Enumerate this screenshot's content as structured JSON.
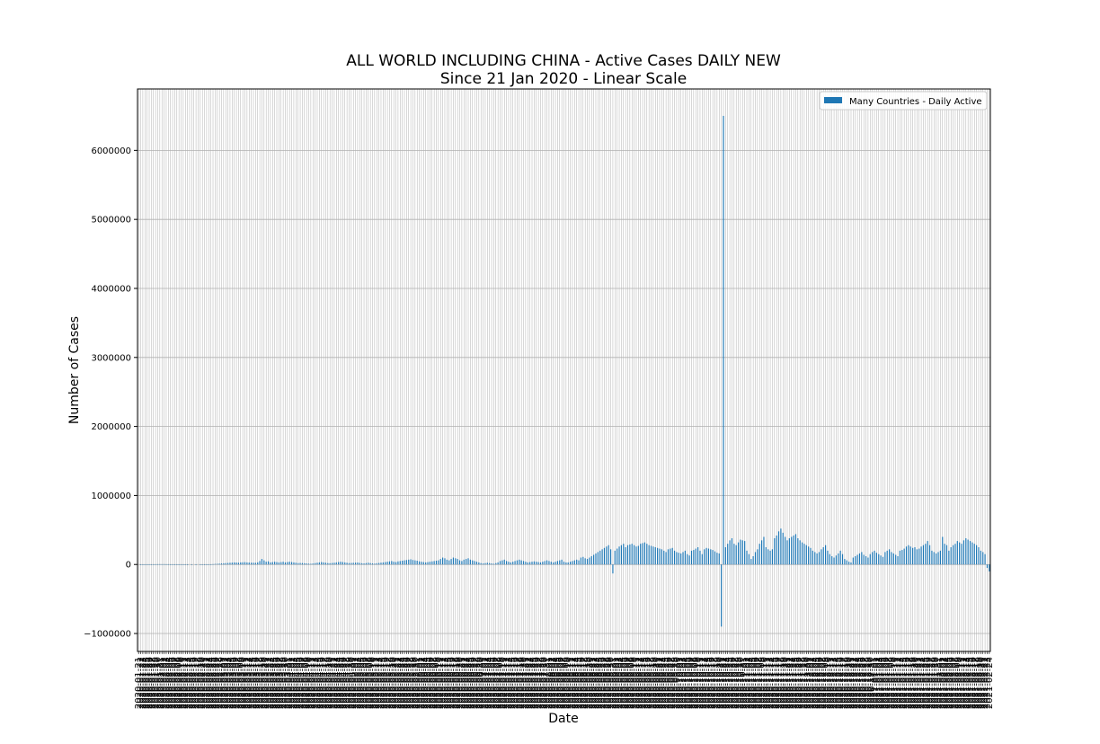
{
  "chart_data": {
    "type": "bar",
    "title": "ALL WORLD INCLUDING CHINA - Active Cases DAILY NEW",
    "subtitle": "Since 21 Jan 2020 - Linear Scale",
    "xlabel": "Date",
    "ylabel": "Number of Cases",
    "ylim": [
      -1260000,
      6890000
    ],
    "yticks": [
      -1000000,
      0,
      1000000,
      2000000,
      3000000,
      4000000,
      5000000,
      6000000
    ],
    "ytick_labels": [
      "−1000000",
      "0",
      "1000000",
      "2000000",
      "3000000",
      "4000000",
      "5000000",
      "6000000"
    ],
    "grid": true,
    "legend_position": "top-right",
    "series": [
      {
        "name": "Many Countries - Daily Active",
        "color": "#1f77b4",
        "x_start": "2020-01-21",
        "values": [
          0,
          100,
          200,
          300,
          300,
          2000,
          2500,
          3000,
          3500,
          4000,
          4500,
          4000,
          4500,
          3500,
          3500,
          2500,
          2500,
          2000,
          1500,
          1000,
          2000,
          1500,
          1000,
          500,
          0,
          -500,
          0,
          -1000,
          0,
          1000,
          500,
          1000,
          1500,
          2000,
          3000,
          5000,
          8000,
          10000,
          12000,
          15000,
          17000,
          20000,
          22000,
          25000,
          27000,
          30000,
          28000,
          26000,
          30000,
          32000,
          34000,
          30000,
          28000,
          26000,
          25000,
          24000,
          30000,
          50000,
          80000,
          60000,
          40000,
          45000,
          30000,
          35000,
          40000,
          35000,
          30000,
          35000,
          40000,
          30000,
          35000,
          40000,
          35000,
          30000,
          25000,
          20000,
          22000,
          20000,
          18000,
          15000,
          12000,
          10000,
          15000,
          20000,
          25000,
          30000,
          35000,
          30000,
          25000,
          20000,
          18000,
          22000,
          25000,
          30000,
          35000,
          40000,
          35000,
          30000,
          25000,
          20000,
          22000,
          24000,
          26000,
          28000,
          22000,
          18000,
          15000,
          20000,
          25000,
          20000,
          15000,
          12000,
          18000,
          22000,
          26000,
          30000,
          35000,
          40000,
          45000,
          50000,
          40000,
          35000,
          45000,
          50000,
          55000,
          60000,
          65000,
          70000,
          75000,
          65000,
          60000,
          55000,
          45000,
          40000,
          35000,
          30000,
          35000,
          40000,
          45000,
          50000,
          55000,
          60000,
          80000,
          100000,
          90000,
          70000,
          60000,
          80000,
          100000,
          90000,
          80000,
          60000,
          50000,
          70000,
          80000,
          90000,
          70000,
          60000,
          50000,
          40000,
          30000,
          20000,
          15000,
          20000,
          25000,
          20000,
          15000,
          10000,
          20000,
          30000,
          50000,
          60000,
          70000,
          50000,
          40000,
          30000,
          40000,
          50000,
          60000,
          70000,
          60000,
          50000,
          40000,
          30000,
          35000,
          40000,
          45000,
          40000,
          35000,
          30000,
          40000,
          50000,
          60000,
          50000,
          40000,
          30000,
          40000,
          50000,
          60000,
          70000,
          40000,
          30000,
          30000,
          40000,
          50000,
          60000,
          70000,
          60000,
          100000,
          110000,
          90000,
          80000,
          100000,
          120000,
          140000,
          160000,
          180000,
          200000,
          220000,
          240000,
          260000,
          280000,
          220000,
          -130000,
          200000,
          230000,
          260000,
          280000,
          300000,
          250000,
          280000,
          290000,
          300000,
          280000,
          260000,
          270000,
          300000,
          310000,
          320000,
          300000,
          280000,
          270000,
          260000,
          250000,
          240000,
          230000,
          220000,
          200000,
          180000,
          220000,
          230000,
          240000,
          200000,
          180000,
          170000,
          160000,
          180000,
          200000,
          150000,
          130000,
          200000,
          210000,
          230000,
          250000,
          200000,
          150000,
          220000,
          240000,
          230000,
          220000,
          210000,
          190000,
          170000,
          160000,
          -900000,
          6500000,
          250000,
          300000,
          350000,
          380000,
          300000,
          280000,
          320000,
          360000,
          350000,
          340000,
          200000,
          150000,
          80000,
          120000,
          180000,
          220000,
          300000,
          350000,
          400000,
          250000,
          220000,
          200000,
          220000,
          380000,
          420000,
          480000,
          520000,
          460000,
          400000,
          350000,
          380000,
          400000,
          420000,
          440000,
          380000,
          350000,
          320000,
          300000,
          280000,
          260000,
          240000,
          200000,
          180000,
          160000,
          180000,
          220000,
          250000,
          280000,
          200000,
          150000,
          120000,
          100000,
          130000,
          160000,
          200000,
          150000,
          80000,
          60000,
          40000,
          30000,
          100000,
          120000,
          140000,
          160000,
          180000,
          140000,
          120000,
          100000,
          150000,
          180000,
          200000,
          170000,
          150000,
          130000,
          110000,
          180000,
          200000,
          220000,
          180000,
          160000,
          140000,
          120000,
          200000,
          210000,
          230000,
          260000,
          280000,
          260000,
          240000,
          250000,
          220000,
          230000,
          260000,
          280000,
          300000,
          340000,
          280000,
          200000,
          180000,
          160000,
          180000,
          200000,
          400000,
          300000,
          280000,
          200000,
          250000,
          280000,
          300000,
          340000,
          320000,
          300000,
          350000,
          380000,
          360000,
          340000,
          320000,
          300000,
          280000,
          250000,
          200000,
          180000,
          150000,
          -50000,
          -100000
        ]
      }
    ]
  }
}
